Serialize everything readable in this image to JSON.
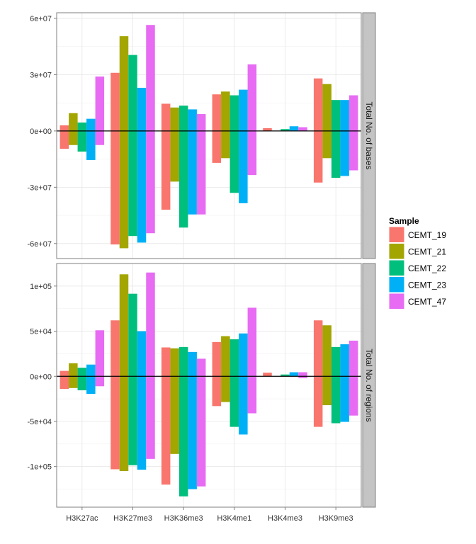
{
  "chart_data": {
    "type": "bar",
    "categories": [
      "H3K27ac",
      "H3K27me3",
      "H3K36me3",
      "H3K4me1",
      "H3K4me3",
      "H3K9me3"
    ],
    "legend": {
      "title": "Sample",
      "position": "right",
      "entries": [
        {
          "name": "CEMT_19",
          "color": "#F8766D"
        },
        {
          "name": "CEMT_21",
          "color": "#A3A500"
        },
        {
          "name": "CEMT_22",
          "color": "#00BF7D"
        },
        {
          "name": "CEMT_23",
          "color": "#00B0F6"
        },
        {
          "name": "CEMT_47",
          "color": "#E76BF3"
        }
      ]
    },
    "grid": true,
    "panels": [
      {
        "strip_label": "Total No. of bases",
        "ylim": [
          -68000000,
          63000000
        ],
        "yticks": [
          -60000000,
          -30000000,
          0,
          30000000,
          60000000
        ],
        "ytick_labels": [
          "-6e+07",
          "-3e+07",
          "0e+00",
          "3e+07",
          "6e+07"
        ],
        "series": [
          {
            "name": "CEMT_19",
            "positive": [
              3000000,
              31000000,
              14500000,
              19500000,
              1500000,
              28000000
            ],
            "negative": [
              -9500000,
              -60500000,
              -42000000,
              -17000000,
              0,
              -27500000
            ]
          },
          {
            "name": "CEMT_21",
            "positive": [
              9500000,
              50500000,
              12500000,
              21000000,
              0,
              25000000
            ],
            "negative": [
              -7500000,
              -62500000,
              -27000000,
              -14500000,
              0,
              -14500000
            ]
          },
          {
            "name": "CEMT_22",
            "positive": [
              4500000,
              40500000,
              13500000,
              19000000,
              1000000,
              16500000
            ],
            "negative": [
              -11000000,
              -56000000,
              -51500000,
              -33000000,
              0,
              -25000000
            ]
          },
          {
            "name": "CEMT_23",
            "positive": [
              6500000,
              23000000,
              11500000,
              22000000,
              2500000,
              16500000
            ],
            "negative": [
              -15500000,
              -59500000,
              -44500000,
              -38500000,
              0,
              -24000000
            ]
          },
          {
            "name": "CEMT_47",
            "positive": [
              29000000,
              56500000,
              9000000,
              35500000,
              2000000,
              19000000
            ],
            "negative": [
              -7500000,
              -54500000,
              -44500000,
              -23500000,
              0,
              -21000000
            ]
          }
        ]
      },
      {
        "strip_label": "Total No. of regions",
        "ylim": [
          -145000,
          125000
        ],
        "yticks": [
          -100000,
          -50000,
          0,
          50000,
          100000
        ],
        "ytick_labels": [
          "-1e+05",
          "-5e+04",
          "0e+00",
          "5e+04",
          "1e+05"
        ],
        "series": [
          {
            "name": "CEMT_19",
            "positive": [
              6000,
              62000,
              32000,
              38000,
              4000,
              62000
            ],
            "negative": [
              -14000,
              -103000,
              -120000,
              -33000,
              0,
              -56000
            ]
          },
          {
            "name": "CEMT_21",
            "positive": [
              14500,
              113000,
              31000,
              44500,
              0,
              56500
            ],
            "negative": [
              -13000,
              -105000,
              -86000,
              -28500,
              0,
              -32000
            ]
          },
          {
            "name": "CEMT_22",
            "positive": [
              9500,
              91500,
              32500,
              41000,
              2000,
              32500
            ],
            "negative": [
              -15500,
              -98500,
              -133000,
              -56000,
              0,
              -52000
            ]
          },
          {
            "name": "CEMT_23",
            "positive": [
              13000,
              50000,
              27000,
              47500,
              4500,
              35500
            ],
            "negative": [
              -19500,
              -103500,
              -125000,
              -64500,
              0,
              -50500
            ]
          },
          {
            "name": "CEMT_47",
            "positive": [
              51000,
              115000,
              19500,
              76000,
              4500,
              39500
            ],
            "negative": [
              -11000,
              -91500,
              -122000,
              -41000,
              -2000,
              -43500
            ]
          }
        ]
      }
    ]
  }
}
